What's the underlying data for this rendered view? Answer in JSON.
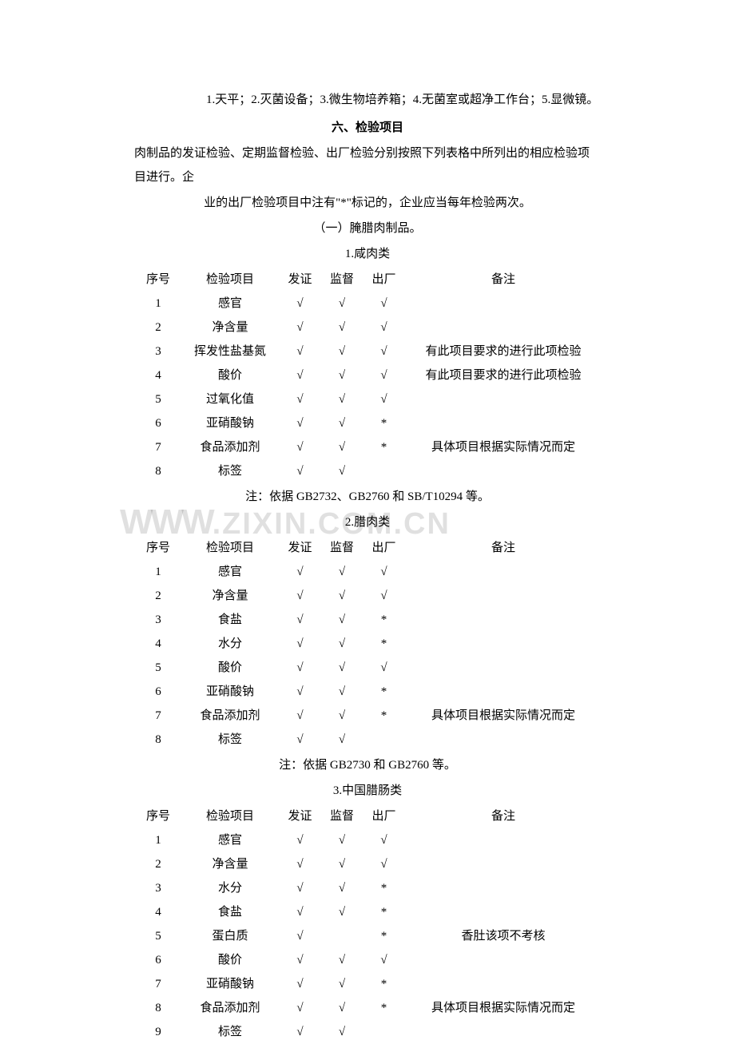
{
  "equipment_list": "1.天平；2.灭菌设备；3.微生物培养箱；4.无菌室或超净工作台；5.显微镜。",
  "section_title": "六、检验项目",
  "intro_line1": "肉制品的发证检验、定期监督检验、出厂检验分别按照下列表格中所列出的相应检验项目进行。企",
  "intro_line2": "业的出厂检验项目中注有\"*\"标记的，企业应当每年检验两次。",
  "category_heading": "（一）腌腊肉制品。",
  "table1": {
    "title": "1.咸肉类",
    "columns": [
      "序号",
      "检验项目",
      "发证",
      "监督",
      "出厂",
      "备注"
    ],
    "rows": [
      [
        "1",
        "感官",
        "√",
        "√",
        "√",
        ""
      ],
      [
        "2",
        "净含量",
        "√",
        "√",
        "√",
        ""
      ],
      [
        "3",
        "挥发性盐基氮",
        "√",
        "√",
        "√",
        "有此项目要求的进行此项检验"
      ],
      [
        "4",
        "酸价",
        "√",
        "√",
        "√",
        "有此项目要求的进行此项检验"
      ],
      [
        "5",
        "过氧化值",
        "√",
        "√",
        "√",
        ""
      ],
      [
        "6",
        "亚硝酸钠",
        "√",
        "√",
        "*",
        ""
      ],
      [
        "7",
        "食品添加剂",
        "√",
        "√",
        "*",
        "具体项目根据实际情况而定"
      ],
      [
        "8",
        "标签",
        "√",
        "√",
        "",
        ""
      ]
    ],
    "note": "注：依据 GB2732、GB2760 和 SB/T10294 等。"
  },
  "table2": {
    "title": "2.腊肉类",
    "columns": [
      "序号",
      "检验项目",
      "发证",
      "监督",
      "出厂",
      "备注"
    ],
    "rows": [
      [
        "1",
        "感官",
        "√",
        "√",
        "√",
        ""
      ],
      [
        "2",
        "净含量",
        "√",
        "√",
        "√",
        ""
      ],
      [
        "3",
        "食盐",
        "√",
        "√",
        "*",
        ""
      ],
      [
        "4",
        "水分",
        "√",
        "√",
        "*",
        ""
      ],
      [
        "5",
        "酸价",
        "√",
        "√",
        "√",
        ""
      ],
      [
        "6",
        "亚硝酸钠",
        "√",
        "√",
        "*",
        ""
      ],
      [
        "7",
        "食品添加剂",
        "√",
        "√",
        "*",
        "具体项目根据实际情况而定"
      ],
      [
        "8",
        "标签",
        "√",
        "√",
        "",
        ""
      ]
    ],
    "note": "注：依据 GB2730 和 GB2760 等。"
  },
  "table3": {
    "title": "3.中国腊肠类",
    "columns": [
      "序号",
      "检验项目",
      "发证",
      "监督",
      "出厂",
      "备注"
    ],
    "rows": [
      [
        "1",
        "感官",
        "√",
        "√",
        "√",
        ""
      ],
      [
        "2",
        "净含量",
        "√",
        "√",
        "√",
        ""
      ],
      [
        "3",
        "水分",
        "√",
        "√",
        "*",
        ""
      ],
      [
        "4",
        "食盐",
        "√",
        "√",
        "*",
        ""
      ],
      [
        "5",
        "蛋白质",
        "√",
        "",
        "*",
        "香肚该项不考核"
      ],
      [
        "6",
        "酸价",
        "√",
        "√",
        "√",
        ""
      ],
      [
        "7",
        "亚硝酸钠",
        "√",
        "√",
        "*",
        ""
      ],
      [
        "8",
        "食品添加剂",
        "√",
        "√",
        "*",
        "具体项目根据实际情况而定"
      ],
      [
        "9",
        "标签",
        "√",
        "√",
        "",
        ""
      ]
    ]
  },
  "watermark_text": "www.zixin.com.cn"
}
